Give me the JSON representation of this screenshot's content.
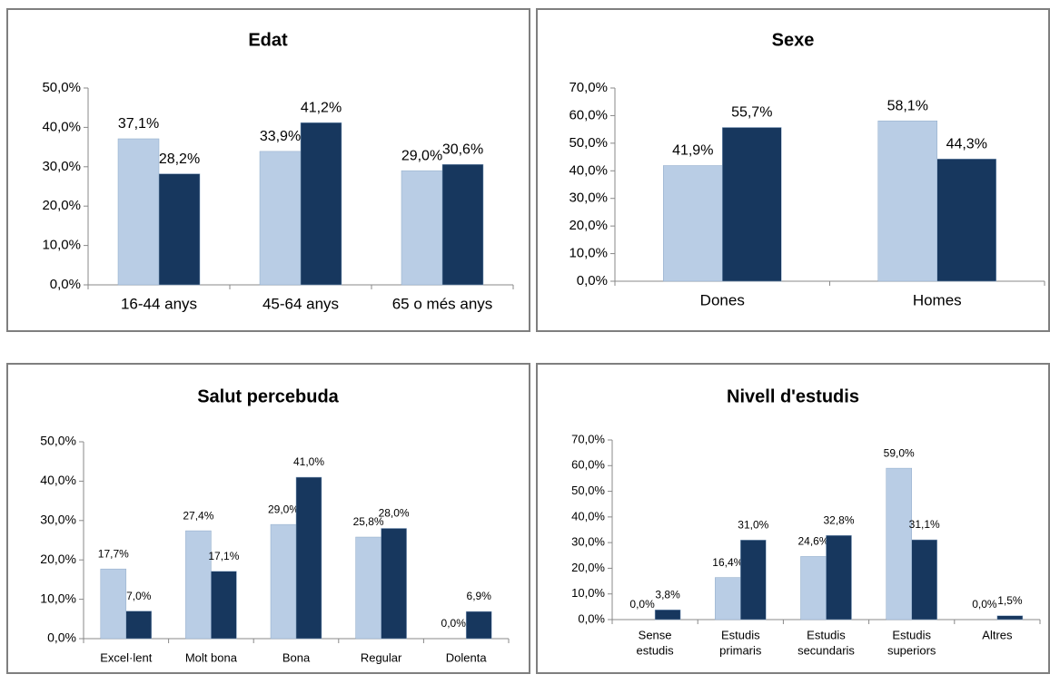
{
  "chart_data": [
    {
      "type": "bar",
      "title": "Edat",
      "categories": [
        "16-44 anys",
        "45-64 anys",
        "65 o més anys"
      ],
      "series": [
        {
          "color": "#b9cde5",
          "values": [
            37.1,
            33.9,
            29.0
          ],
          "value_labels": [
            "37,1%",
            "33,9%",
            "29,0%"
          ]
        },
        {
          "color": "#17375e",
          "values": [
            28.2,
            41.2,
            30.6
          ],
          "value_labels": [
            "28,2%",
            "41,2%",
            "30,6%"
          ]
        }
      ],
      "ylim": [
        0,
        50
      ],
      "yticks": [
        {
          "value": 0,
          "label": "0,0%"
        },
        {
          "value": 10,
          "label": "10,0%"
        },
        {
          "value": 20,
          "label": "20,0%"
        },
        {
          "value": 30,
          "label": "30,0%"
        },
        {
          "value": 40,
          "label": "40,0%"
        },
        {
          "value": 50,
          "label": "50,0%"
        }
      ]
    },
    {
      "type": "bar",
      "title": "Sexe",
      "categories": [
        "Dones",
        "Homes"
      ],
      "series": [
        {
          "color": "#b9cde5",
          "values": [
            41.9,
            58.1
          ],
          "value_labels": [
            "41,9%",
            "58,1%"
          ]
        },
        {
          "color": "#17375e",
          "values": [
            55.7,
            44.3
          ],
          "value_labels": [
            "55,7%",
            "44,3%"
          ]
        }
      ],
      "ylim": [
        0,
        70
      ],
      "yticks": [
        {
          "value": 0,
          "label": "0,0%"
        },
        {
          "value": 10,
          "label": "10,0%"
        },
        {
          "value": 20,
          "label": "20,0%"
        },
        {
          "value": 30,
          "label": "30,0%"
        },
        {
          "value": 40,
          "label": "40,0%"
        },
        {
          "value": 50,
          "label": "50,0%"
        },
        {
          "value": 60,
          "label": "60,0%"
        },
        {
          "value": 70,
          "label": "70,0%"
        }
      ]
    },
    {
      "type": "bar",
      "title": "Salut percebuda",
      "categories": [
        "Excel·lent",
        "Molt bona",
        "Bona",
        "Regular",
        "Dolenta"
      ],
      "series": [
        {
          "color": "#b9cde5",
          "values": [
            17.7,
            27.4,
            29.0,
            25.8,
            0.0
          ],
          "value_labels": [
            "17,7%",
            "27,4%",
            "29,0%",
            "25,8%",
            "0,0%"
          ]
        },
        {
          "color": "#17375e",
          "values": [
            7.0,
            17.1,
            41.0,
            28.0,
            6.9
          ],
          "value_labels": [
            "7,0%",
            "17,1%",
            "41,0%",
            "28,0%",
            "6,9%"
          ]
        }
      ],
      "ylim": [
        0,
        50
      ],
      "yticks": [
        {
          "value": 0,
          "label": "0,0%"
        },
        {
          "value": 10,
          "label": "10,0%"
        },
        {
          "value": 20,
          "label": "20,0%"
        },
        {
          "value": 30,
          "label": "30,0%"
        },
        {
          "value": 40,
          "label": "40,0%"
        },
        {
          "value": 50,
          "label": "50,0%"
        }
      ]
    },
    {
      "type": "bar",
      "title": "Nivell d'estudis",
      "categories": [
        [
          "Sense",
          "estudis"
        ],
        [
          "Estudis",
          "primaris"
        ],
        [
          "Estudis",
          "secundaris"
        ],
        [
          "Estudis",
          "superiors"
        ],
        [
          "Altres"
        ]
      ],
      "series": [
        {
          "color": "#b9cde5",
          "values": [
            0.0,
            16.4,
            24.6,
            59.0,
            0.0
          ],
          "value_labels": [
            "0,0%",
            "16,4%",
            "24,6%",
            "59,0%",
            "0,0%"
          ]
        },
        {
          "color": "#17375e",
          "values": [
            3.8,
            31.0,
            32.8,
            31.1,
            1.5
          ],
          "value_labels": [
            "3,8%",
            "31,0%",
            "32,8%",
            "31,1%",
            "1,5%"
          ]
        }
      ],
      "ylim": [
        0,
        70
      ],
      "yticks": [
        {
          "value": 0,
          "label": "0,0%"
        },
        {
          "value": 10,
          "label": "10,0%"
        },
        {
          "value": 20,
          "label": "20,0%"
        },
        {
          "value": 30,
          "label": "30,0%"
        },
        {
          "value": 40,
          "label": "40,0%"
        },
        {
          "value": 50,
          "label": "50,0%"
        },
        {
          "value": 60,
          "label": "60,0%"
        },
        {
          "value": 70,
          "label": "70,0%"
        }
      ]
    }
  ]
}
